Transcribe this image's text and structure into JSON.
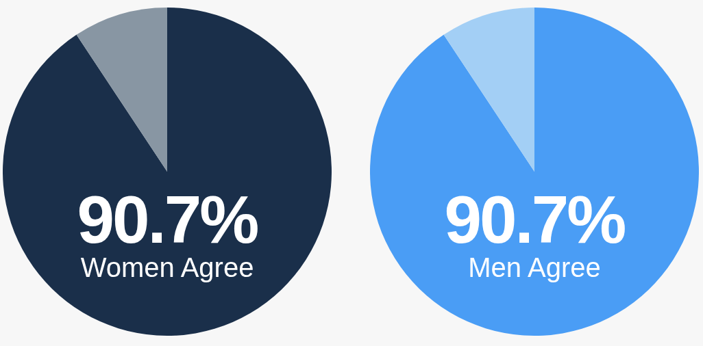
{
  "chart_data": [
    {
      "type": "pie",
      "categories": [
        "Women Agree",
        null
      ],
      "values": [
        90.7,
        9.3
      ],
      "colors": [
        "#1a2f4a",
        "#8896a3"
      ],
      "value_labels": [
        "90.7%",
        null
      ]
    },
    {
      "type": "pie",
      "categories": [
        "Men Agree",
        null
      ],
      "values": [
        90.7,
        9.3
      ],
      "colors": [
        "#4a9df5",
        "#a3cff5"
      ],
      "value_labels": [
        "90.7%",
        null
      ]
    }
  ]
}
